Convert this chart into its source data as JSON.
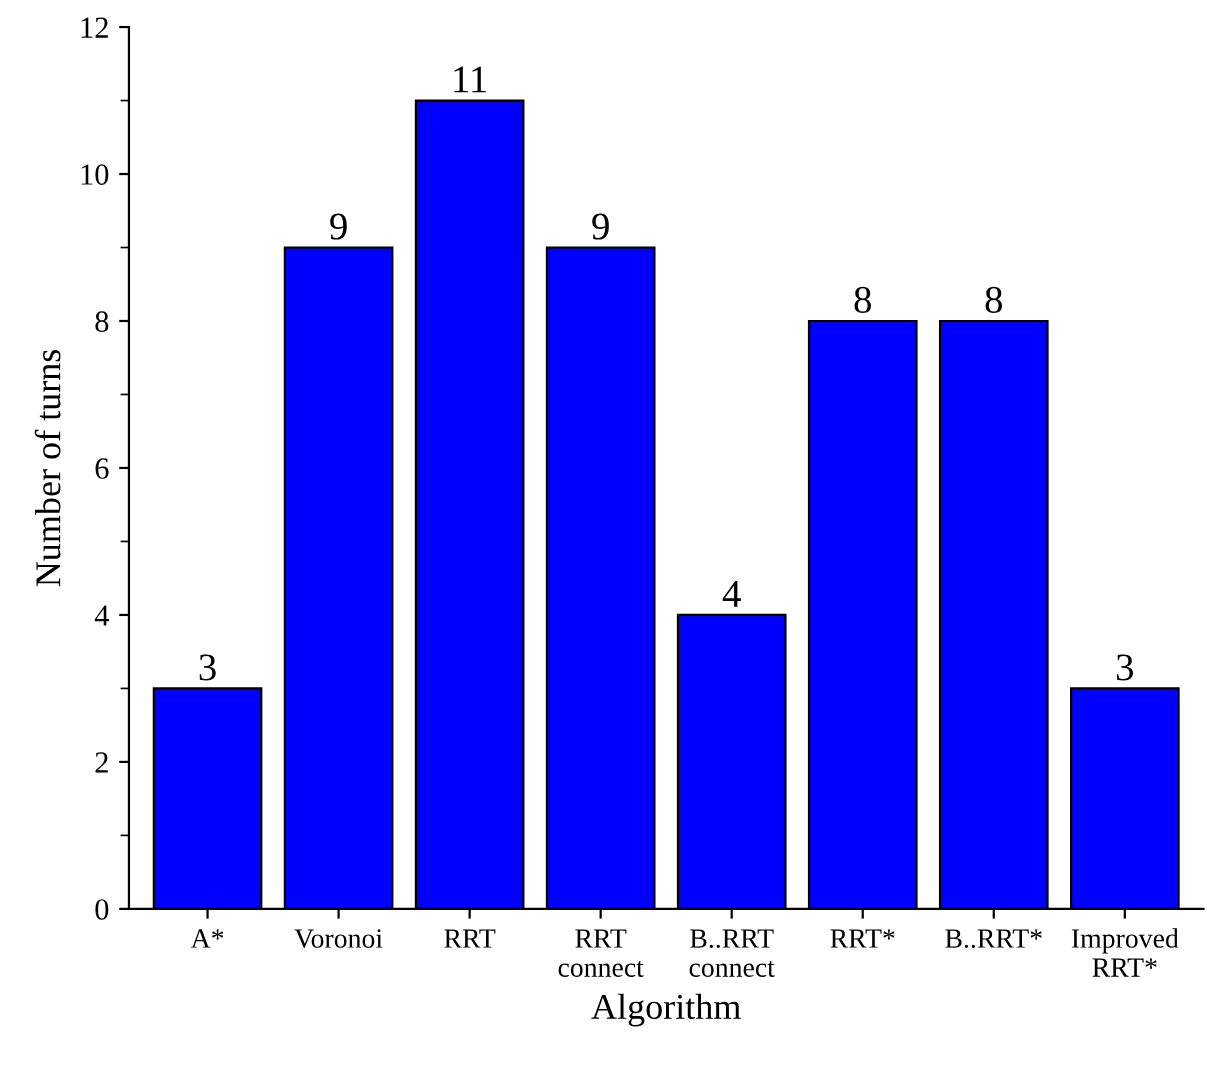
{
  "chart_data": {
    "type": "bar",
    "xlabel": "Algorithm",
    "ylabel": "Number of turns",
    "categories": [
      "A*",
      "Voronoi",
      "RRT",
      "RRT\nconnect",
      "B..RRT\nconnect",
      "RRT*",
      "B..RRT*",
      "Improved\nRRT*"
    ],
    "values": [
      3,
      9,
      11,
      9,
      4,
      8,
      8,
      3
    ],
    "color": "#0000ff",
    "ylim": [
      0,
      12
    ],
    "yticks": [
      0,
      {
        "value": 1,
        "label": null
      },
      2,
      {
        "value": 3,
        "label": null
      },
      4,
      {
        "value": 5,
        "label": null
      },
      6,
      {
        "value": 7,
        "label": null
      },
      8,
      {
        "value": 9,
        "label": null
      },
      10,
      {
        "value": 11,
        "label": null
      },
      12
    ],
    "data_labels": true,
    "grid": false,
    "legend": false
  }
}
